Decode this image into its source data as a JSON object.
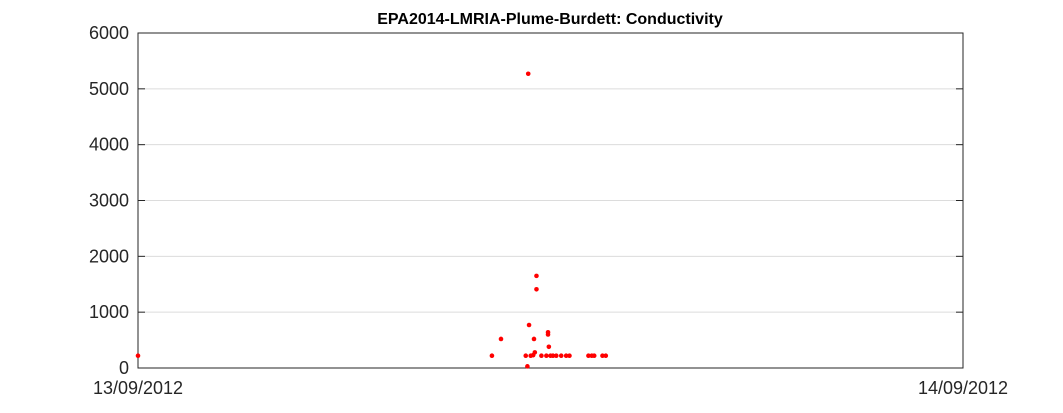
{
  "chart_data": {
    "type": "scatter",
    "title": "EPA2014-LMRIA-Plume-Burdett: Conductivity",
    "xlabel": "",
    "ylabel": "",
    "x_ticks": [
      "13/09/2012",
      "14/09/2012"
    ],
    "xlim": [
      0,
      1
    ],
    "ylim": [
      0,
      6000
    ],
    "y_ticks": [
      0,
      1000,
      2000,
      3000,
      4000,
      5000,
      6000
    ],
    "grid": "horizontal",
    "marker_color": "#ff0000",
    "series": [
      {
        "points": [
          [
            0.0,
            220
          ],
          [
            0.429,
            220
          ],
          [
            0.44,
            520
          ],
          [
            0.47,
            220
          ],
          [
            0.472,
            30
          ],
          [
            0.473,
            5270
          ],
          [
            0.474,
            770
          ],
          [
            0.476,
            220
          ],
          [
            0.479,
            230
          ],
          [
            0.48,
            520
          ],
          [
            0.481,
            280
          ],
          [
            0.483,
            1650
          ],
          [
            0.483,
            1410
          ],
          [
            0.489,
            220
          ],
          [
            0.495,
            220
          ],
          [
            0.497,
            640
          ],
          [
            0.497,
            600
          ],
          [
            0.498,
            380
          ],
          [
            0.5,
            220
          ],
          [
            0.503,
            220
          ],
          [
            0.507,
            220
          ],
          [
            0.513,
            220
          ],
          [
            0.519,
            220
          ],
          [
            0.523,
            220
          ],
          [
            0.546,
            220
          ],
          [
            0.55,
            220
          ],
          [
            0.553,
            220
          ],
          [
            0.563,
            220
          ],
          [
            0.567,
            220
          ]
        ]
      }
    ]
  }
}
